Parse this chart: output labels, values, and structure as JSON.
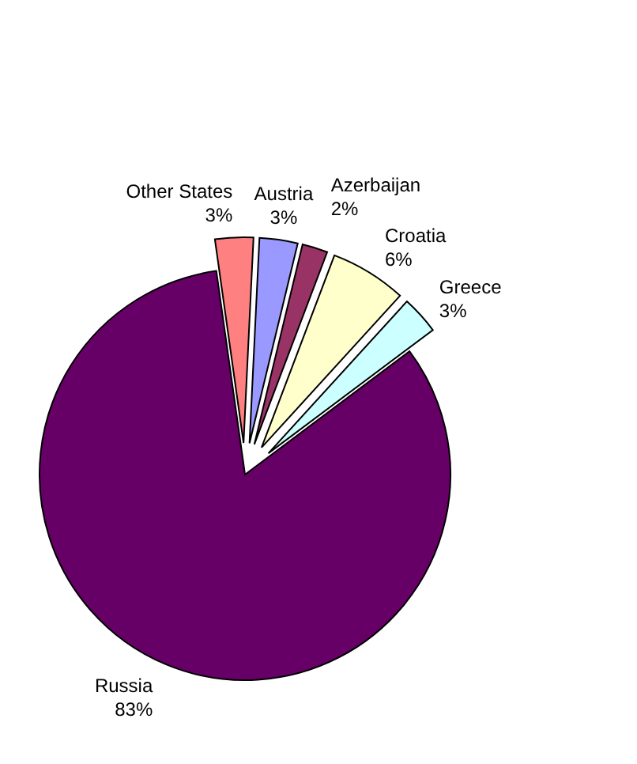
{
  "chart_data": {
    "type": "pie",
    "categories": [
      "Other States",
      "Austria",
      "Azerbaijan",
      "Croatia",
      "Greece",
      "Russia"
    ],
    "values": [
      3,
      3,
      2,
      6,
      3,
      83
    ],
    "value_labels": [
      "3%",
      "3%",
      "2%",
      "6%",
      "3%",
      "83%"
    ],
    "colors": [
      "#ff8080",
      "#9999ff",
      "#993366",
      "#ffffcc",
      "#ccffff",
      "#660066"
    ]
  }
}
